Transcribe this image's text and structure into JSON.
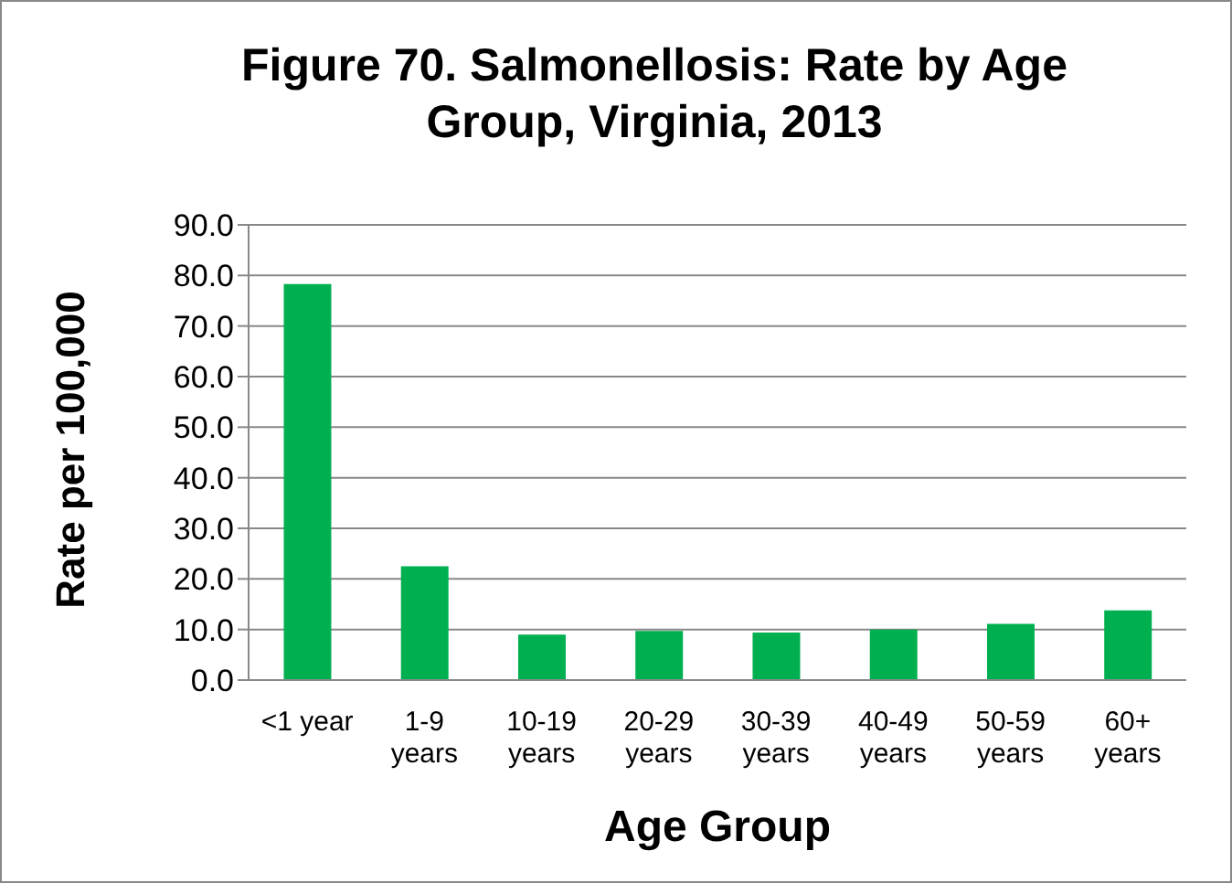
{
  "chart_data": {
    "type": "bar",
    "title": "Figure 70. Salmonellosis: Rate by Age Group, Virginia, 2013",
    "xlabel": "Age Group",
    "ylabel": "Rate per 100,000",
    "categories": [
      "<1 year",
      "1-9\nyears",
      "10-19\nyears",
      "20-29\nyears",
      "30-39\nyears",
      "40-49\nyears",
      "50-59\nyears",
      "60+\nyears"
    ],
    "values": [
      78.3,
      22.5,
      9.0,
      9.7,
      9.4,
      10.0,
      11.1,
      13.8
    ],
    "color": "#00b050",
    "ylim": [
      0,
      90
    ],
    "yticks": [
      {
        "value": 0,
        "label": "0.0"
      },
      {
        "value": 10,
        "label": "10.0"
      },
      {
        "value": 20,
        "label": "20.0"
      },
      {
        "value": 30,
        "label": "30.0"
      },
      {
        "value": 40,
        "label": "40.0"
      },
      {
        "value": 50,
        "label": "50.0"
      },
      {
        "value": 60,
        "label": "60.0"
      },
      {
        "value": 70,
        "label": "70.0"
      },
      {
        "value": 80,
        "label": "80.0"
      },
      {
        "value": 90,
        "label": "90.0"
      }
    ],
    "grid": "y"
  }
}
